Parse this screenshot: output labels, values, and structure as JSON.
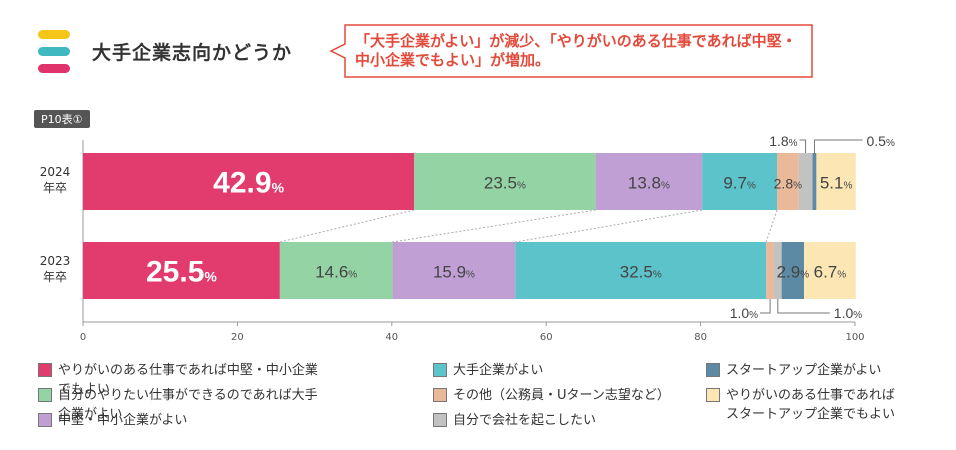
{
  "header": {
    "title": "大手企業志向かどうか",
    "callout": "「大手企業がよい」が減少、「やりがいのある仕事であれば中堅・中小企業でもよい」が増加。",
    "tag": "P10表①",
    "deco_colors": [
      "#f5c518",
      "#3fb8c0",
      "#e0336b"
    ]
  },
  "chart_data": {
    "type": "bar",
    "orientation": "horizontal",
    "stacked": true,
    "categories": [
      "2024\n年卒",
      "2023\n年卒"
    ],
    "xlim": [
      0,
      100
    ],
    "xticks": [
      0,
      20,
      40,
      60,
      80,
      100
    ],
    "series": [
      {
        "name": "やりがいのある仕事であれば中堅・中小企業でもよい",
        "color": "#e23b6d",
        "values": [
          42.9,
          25.5
        ]
      },
      {
        "name": "自分のやりたい仕事ができるのであれば大手企業がよい",
        "color": "#94d3a4",
        "values": [
          23.5,
          14.6
        ]
      },
      {
        "name": "中堅・中小企業がよい",
        "color": "#c0a0d4",
        "values": [
          13.8,
          15.9
        ]
      },
      {
        "name": "大手企業がよい",
        "color": "#5bc3c9",
        "values": [
          9.7,
          32.5
        ]
      },
      {
        "name": "その他（公務員・Uターン志望など）",
        "color": "#e9b99a",
        "values": [
          2.8,
          1.0
        ]
      },
      {
        "name": "自分で会社を起こしたい",
        "color": "#c2c2c2",
        "values": [
          1.8,
          1.0
        ]
      },
      {
        "name": "スタートアップ企業がよい",
        "color": "#5c89a3",
        "values": [
          0.5,
          2.9
        ]
      },
      {
        "name": "やりがいのある仕事であれば\nスタートアップ企業でもよい",
        "color": "#fce7b4",
        "values": [
          5.1,
          6.7
        ]
      }
    ],
    "data_labels": [
      [
        "42.9",
        "23.5",
        "13.8",
        "9.7",
        "2.8",
        "1.8",
        "0.5",
        "5.1"
      ],
      [
        "25.5",
        "14.6",
        "15.9",
        "32.5",
        "1.0",
        "1.0",
        "2.9",
        "6.7"
      ]
    ],
    "unit": "%"
  }
}
